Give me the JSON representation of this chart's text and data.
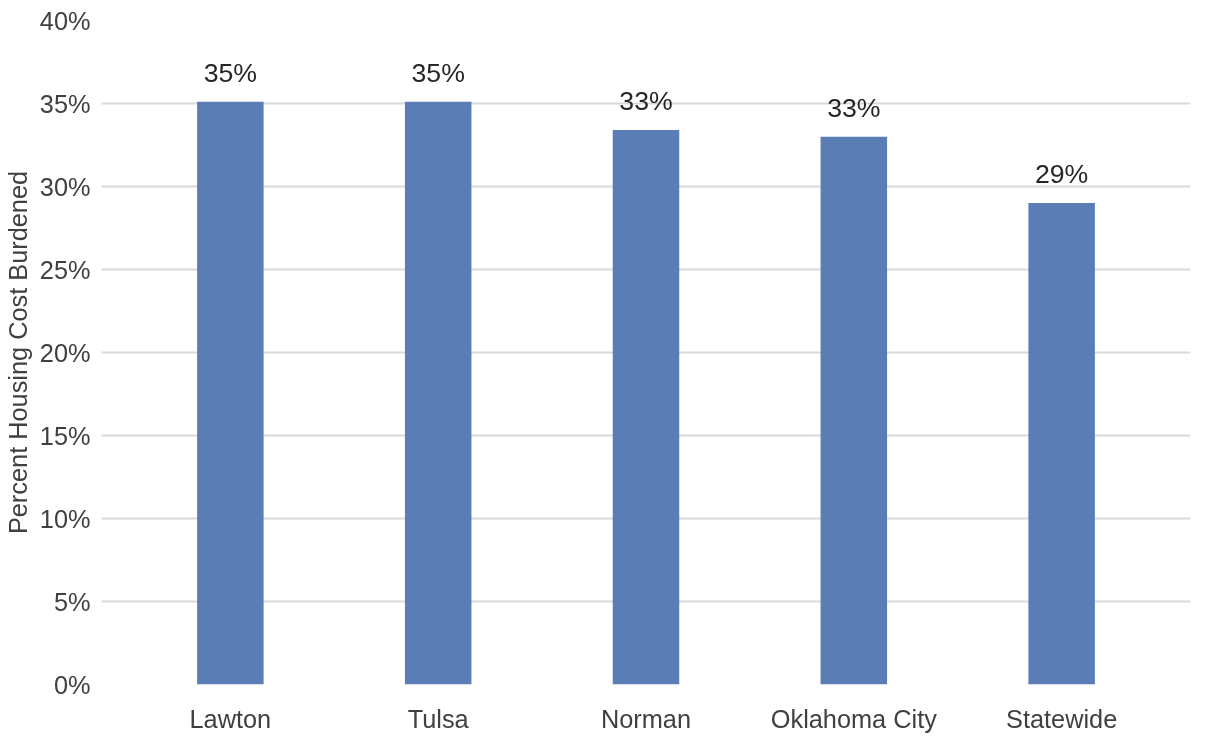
{
  "chart_data": {
    "type": "bar",
    "ylabel": "Percent Housing Cost Burdened",
    "categories": [
      "Lawton",
      "Tulsa",
      "Norman",
      "Oklahoma City",
      "Statewide"
    ],
    "values": [
      35.1,
      35.1,
      33.4,
      33.0,
      29.0
    ],
    "value_labels": [
      "35%",
      "35%",
      "33%",
      "33%",
      "29%"
    ],
    "color": "#5a7db5",
    "ylim": [
      0,
      40
    ],
    "yticks": [
      {
        "value": 0,
        "label": "0%"
      },
      {
        "value": 5,
        "label": "5%"
      },
      {
        "value": 10,
        "label": "10%"
      },
      {
        "value": 15,
        "label": "15%"
      },
      {
        "value": 20,
        "label": "20%"
      },
      {
        "value": 25,
        "label": "25%"
      },
      {
        "value": 30,
        "label": "30%"
      },
      {
        "value": 35,
        "label": "35%"
      },
      {
        "value": 40,
        "label": "40%"
      }
    ],
    "grid": "y"
  }
}
